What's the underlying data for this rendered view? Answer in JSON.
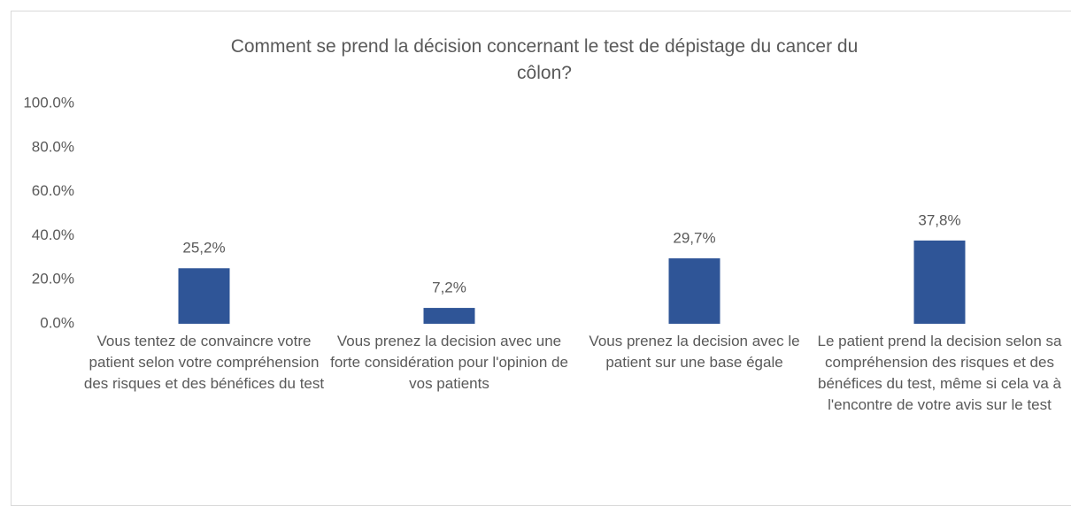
{
  "chart_data": {
    "type": "bar",
    "title": "Comment se prend la décision concernant le test de dépistage du cancer du côlon?",
    "categories": [
      "Vous tentez de convaincre votre patient selon votre compréhension des risques et des bénéfices du test",
      "Vous prenez la decision avec une forte considération pour l'opinion de vos patients",
      "Vous prenez la decision avec le patient sur une base égale",
      "Le patient prend la decision selon sa compréhension des risques et des bénéfices du test, même si cela va à l'encontre de votre avis sur le test"
    ],
    "values": [
      25.2,
      7.2,
      29.7,
      37.8
    ],
    "value_labels": [
      "25,2%",
      "7,2%",
      "29,7%",
      "37,8%"
    ],
    "color": "#2f5597",
    "ylim": [
      0,
      100
    ],
    "yticks": [
      {
        "value": 0,
        "label": "0.0%"
      },
      {
        "value": 20,
        "label": "20.0%"
      },
      {
        "value": 40,
        "label": "40.0%"
      },
      {
        "value": 60,
        "label": "60.0%"
      },
      {
        "value": 80,
        "label": "80.0%"
      },
      {
        "value": 100,
        "label": "100.0%"
      }
    ],
    "grid": true
  }
}
